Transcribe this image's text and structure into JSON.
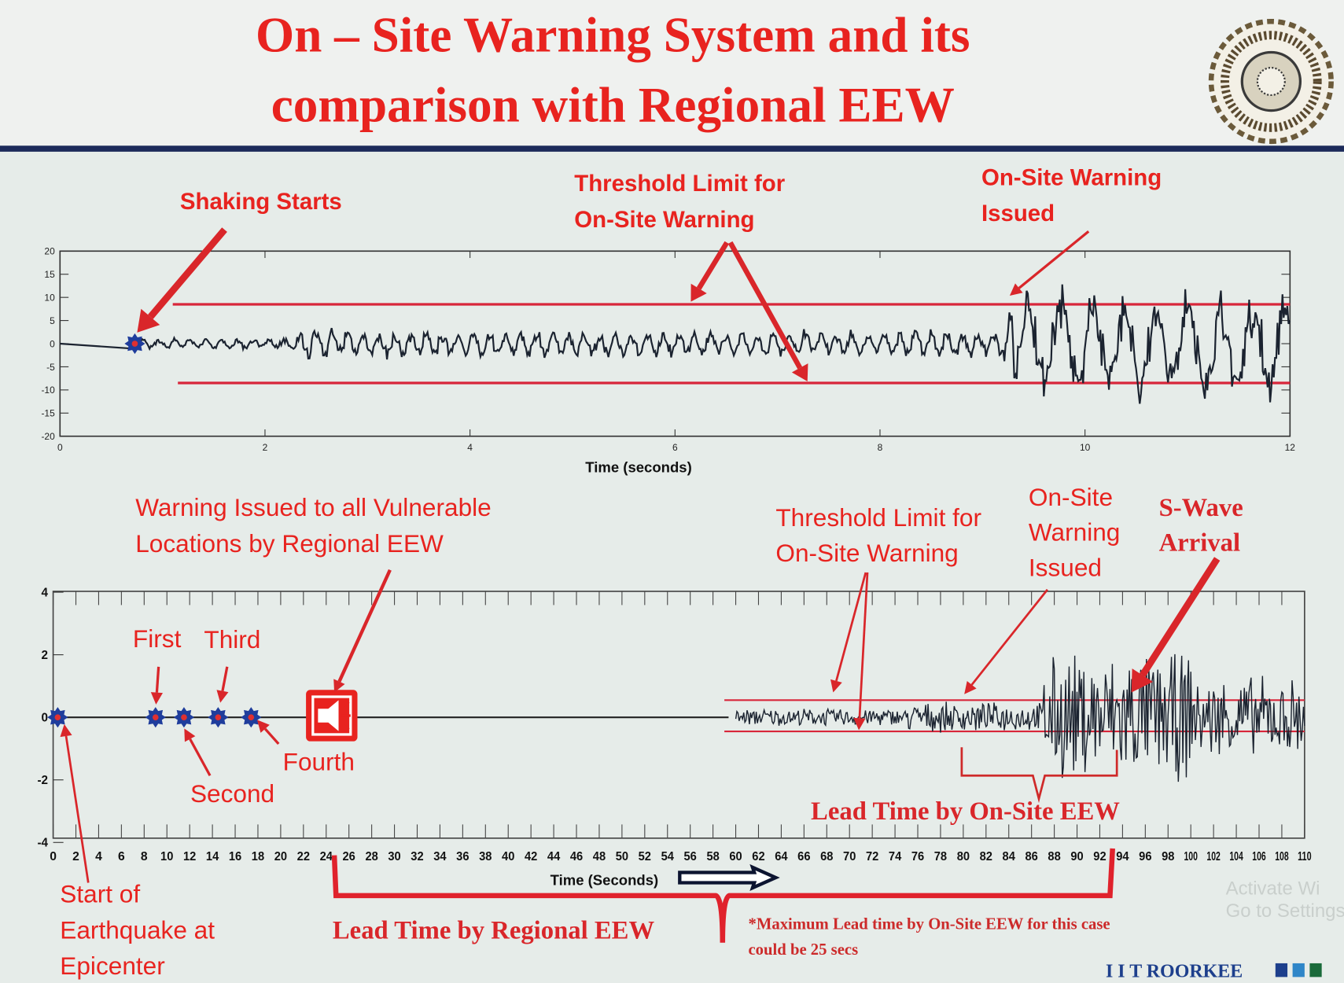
{
  "slide": {
    "title_line1": "On – Site Warning System and its",
    "title_line2": "comparison with Regional EEW",
    "footer_brand": "I I T ROORKEE",
    "watermark_line1": "Activate Wi",
    "watermark_line2": "Go to Settings"
  },
  "colors": {
    "title": "#e8231f",
    "annotation": "#e8231f",
    "threshold_line": "#d8263a",
    "waveform": "#1b2330",
    "marker_outer": "#1f3d9c",
    "marker_inner": "#e03030",
    "header_rule": "#1c2a5a",
    "brand": "#1d3f8c"
  },
  "top_annotations": {
    "shaking_starts": "Shaking Starts",
    "threshold_line1": "Threshold Limit for",
    "threshold_line2": "On-Site Warning",
    "onsite_line1": "On-Site Warning",
    "onsite_line2": "Issued"
  },
  "bottom_annotations": {
    "regional_line1": "Warning Issued to all Vulnerable",
    "regional_line2": "Locations by Regional EEW",
    "first": "First",
    "second": "Second",
    "third": "Third",
    "fourth": "Fourth",
    "start_line1": "Start of",
    "start_line2": "Earthquake at",
    "start_line3": "Epicenter",
    "threshold_line1": "Threshold Limit for",
    "threshold_line2": "On-Site Warning",
    "onsite_line1": "On-Site",
    "onsite_line2": "Warning",
    "onsite_line3": "Issued",
    "swave_line1": "S-Wave",
    "swave_line2": "Arrival",
    "lead_onsite": "Lead Time by On-Site EEW",
    "lead_regional": "Lead Time by Regional EEW",
    "footnote_line1": "*Maximum Lead time by On-Site EEW for this case",
    "footnote_line2": "could be 25 secs"
  },
  "chart_data": [
    {
      "type": "line",
      "title": "",
      "xlabel": "Time (seconds)",
      "ylabel": "",
      "xlim": [
        0,
        12
      ],
      "ylim": [
        -20,
        20
      ],
      "xticks": [
        "0",
        "2",
        "4",
        "6",
        "8",
        "10",
        "12"
      ],
      "yticks": [
        "20",
        "15",
        "10",
        "5",
        "0",
        "-5",
        "-10",
        "-15",
        "-20"
      ],
      "grid": false,
      "shaking_start_marker": {
        "x": 0.73,
        "y": 0
      },
      "thresholds": [
        {
          "y": 8.5,
          "x_from": 1.1,
          "x_to": 12
        },
        {
          "y": -8.5,
          "x_from": 1.15,
          "x_to": 12
        }
      ],
      "onsite_warning_time": 9.3,
      "waveform_envelope": [
        {
          "t_from": 0,
          "t_to": 0.73,
          "amplitude": 0
        },
        {
          "t_from": 0.73,
          "t_to": 2.3,
          "amplitude": 1.5
        },
        {
          "t_from": 2.3,
          "t_to": 2.9,
          "amplitude": 4.5
        },
        {
          "t_from": 2.9,
          "t_to": 9.2,
          "amplitude": 3.5
        },
        {
          "t_from": 9.2,
          "t_to": 9.4,
          "amplitude": 10.5
        },
        {
          "t_from": 9.4,
          "t_to": 12,
          "amplitude": 14
        }
      ]
    },
    {
      "type": "line",
      "title": "",
      "xlabel": "Time (Seconds)",
      "ylabel": "",
      "xlim": [
        0,
        110
      ],
      "ylim": [
        -4,
        4
      ],
      "xticks": [
        "0",
        "2",
        "4",
        "6",
        "8",
        "10",
        "12",
        "14",
        "16",
        "18",
        "20",
        "22",
        "24",
        "26",
        "28",
        "30",
        "32",
        "34",
        "36",
        "38",
        "40",
        "42",
        "44",
        "46",
        "48",
        "50",
        "52",
        "54",
        "56",
        "58",
        "60",
        "62",
        "64",
        "66",
        "68",
        "70",
        "72",
        "74",
        "76",
        "78",
        "80",
        "82",
        "84",
        "86",
        "88",
        "90",
        "92",
        "94",
        "96",
        "98",
        "100",
        "102",
        "104",
        "106",
        "108",
        "110"
      ],
      "yticks": [
        "4",
        "2",
        "0",
        "-2",
        "-4"
      ],
      "grid": false,
      "station_markers": [
        {
          "label": "Start of Earthquake at Epicenter",
          "x": 0.4
        },
        {
          "label": "First",
          "x": 9.0
        },
        {
          "label": "Second",
          "x": 11.5
        },
        {
          "label": "Third",
          "x": 14.5
        },
        {
          "label": "Fourth",
          "x": 17.4
        }
      ],
      "regional_warning_time": 24,
      "thresholds": [
        {
          "y": 0.55,
          "x_from": 59,
          "x_to": 110
        },
        {
          "y": -0.45,
          "x_from": 59,
          "x_to": 110
        }
      ],
      "onsite_warning_time": 80,
      "swave_arrival_time": 94,
      "lead_time_regional": {
        "from": 24,
        "to": 93
      },
      "lead_time_onsite": {
        "from": 80,
        "to": 93
      },
      "waveform_envelope": [
        {
          "t_from": 60,
          "t_to": 75,
          "amplitude": 0.3
        },
        {
          "t_from": 75,
          "t_to": 87,
          "amplitude": 0.5
        },
        {
          "t_from": 87,
          "t_to": 100,
          "amplitude": 2.2
        },
        {
          "t_from": 100,
          "t_to": 110,
          "amplitude": 1.4
        }
      ]
    }
  ]
}
